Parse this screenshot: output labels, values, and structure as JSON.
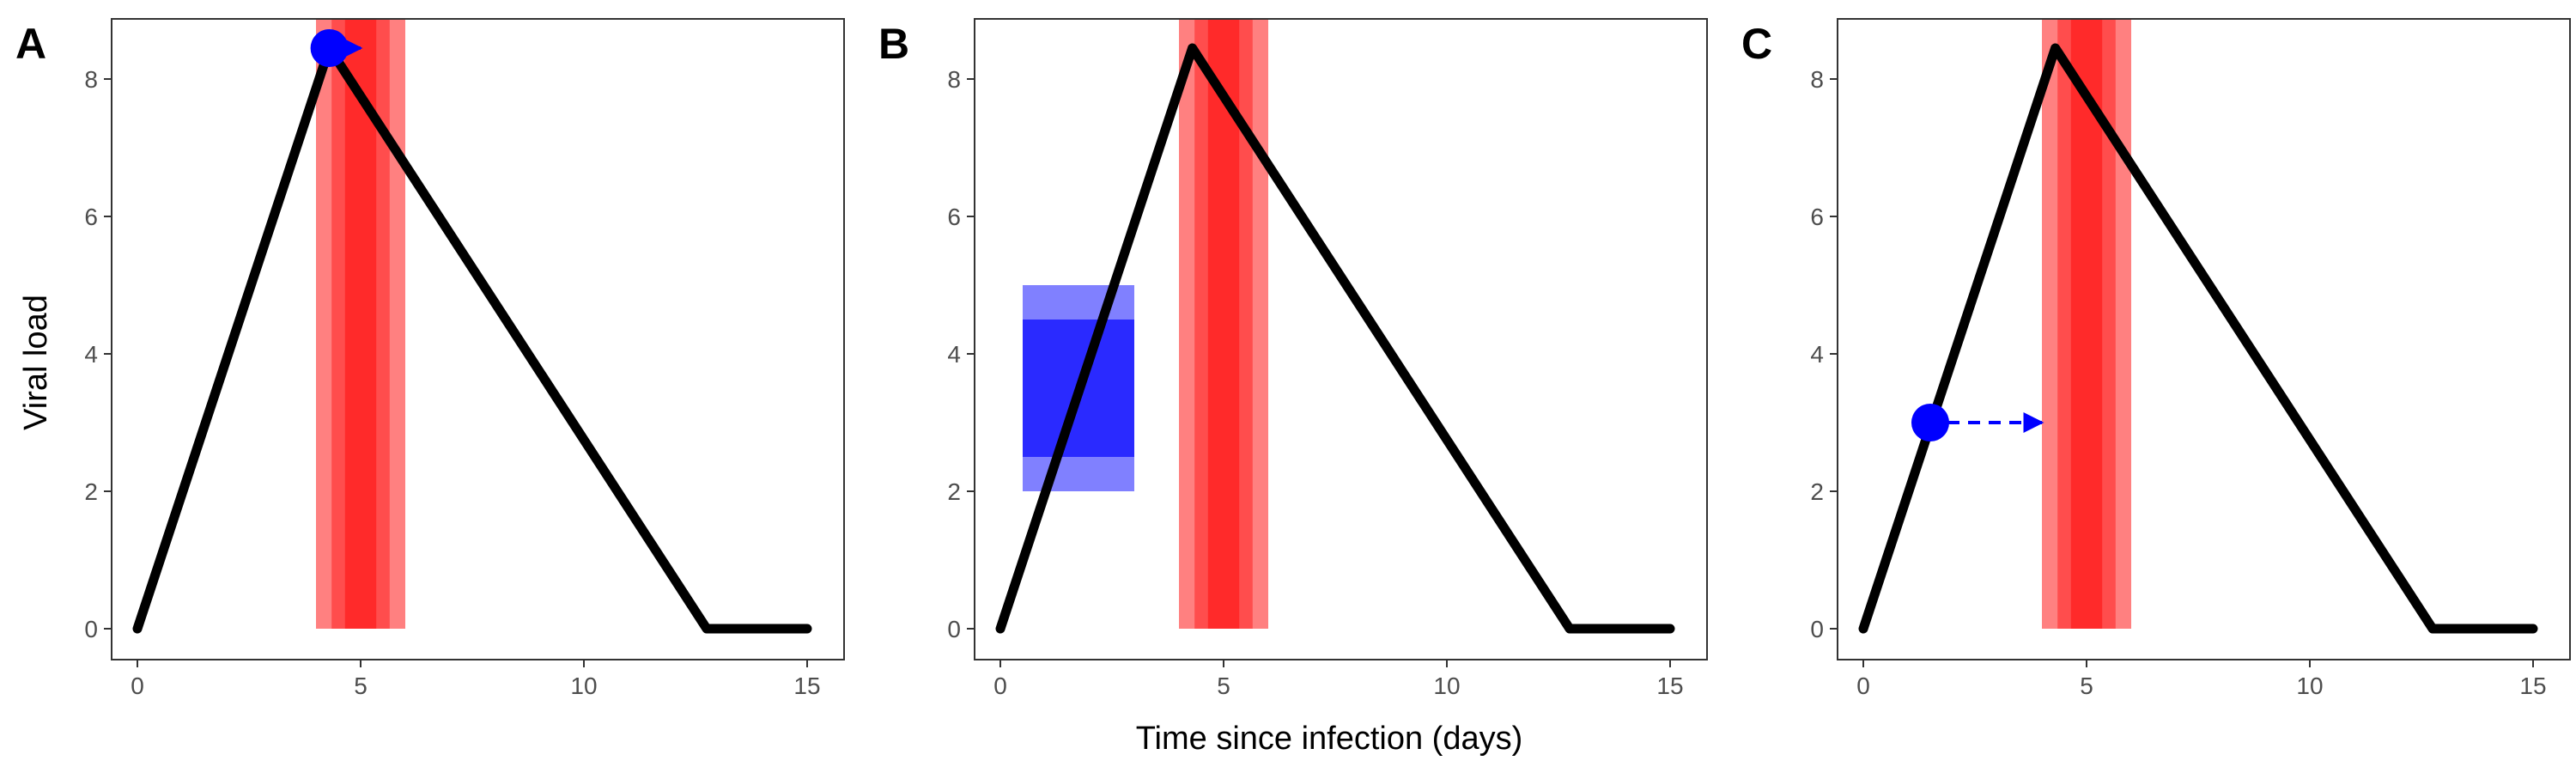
{
  "figure": {
    "xlabel": "Time since infection (days)",
    "ylabel": "Viral load"
  },
  "colors": {
    "trajectory": "#000000",
    "infectious_outer": "#ff8080",
    "infectious_mid": "#ff4d4d",
    "infectious_inner": "#ff2a2a",
    "marker": "#0000ff",
    "test_window_outer": "#8080ff",
    "test_window_inner": "#2a2aff"
  },
  "chart_data": [
    {
      "panel": "A",
      "type": "line",
      "xlim": [
        0,
        15
      ],
      "ylim": [
        0,
        8.5
      ],
      "x_ticks": [
        "0",
        "5",
        "10",
        "15"
      ],
      "y_ticks": [
        "0",
        "2",
        "4",
        "6",
        "8"
      ],
      "trajectory": {
        "x": [
          0,
          4.3,
          12.75,
          15
        ],
        "y": [
          0,
          8.45,
          0,
          0
        ]
      },
      "infectious_period": [
        {
          "x_start": 4.0,
          "x_end": 6.0,
          "level": "outer"
        },
        {
          "x_start": 4.35,
          "x_end": 5.65,
          "level": "mid"
        },
        {
          "x_start": 4.65,
          "x_end": 5.35,
          "level": "inner"
        }
      ],
      "marker": {
        "x": 4.3,
        "y": 8.45
      },
      "arrow": {
        "x_from": 4.3,
        "x_to": 5.0,
        "y": 8.45
      },
      "grid": false
    },
    {
      "panel": "B",
      "type": "line",
      "xlim": [
        0,
        15
      ],
      "ylim": [
        0,
        8.5
      ],
      "x_ticks": [
        "0",
        "5",
        "10",
        "15"
      ],
      "y_ticks": [
        "0",
        "2",
        "4",
        "6",
        "8"
      ],
      "trajectory": {
        "x": [
          0,
          4.3,
          12.75,
          15
        ],
        "y": [
          0,
          8.45,
          0,
          0
        ]
      },
      "infectious_period": [
        {
          "x_start": 4.0,
          "x_end": 6.0,
          "level": "outer"
        },
        {
          "x_start": 4.35,
          "x_end": 5.65,
          "level": "mid"
        },
        {
          "x_start": 4.65,
          "x_end": 5.35,
          "level": "inner"
        }
      ],
      "test_window": [
        {
          "x_start": 0.5,
          "x_end": 3.0,
          "y_start": 2.0,
          "y_end": 5.0,
          "level": "outer"
        },
        {
          "x_start": 0.5,
          "x_end": 3.0,
          "y_start": 2.5,
          "y_end": 4.5,
          "level": "inner"
        }
      ],
      "grid": false
    },
    {
      "panel": "C",
      "type": "line",
      "xlim": [
        0,
        15
      ],
      "ylim": [
        0,
        8.5
      ],
      "x_ticks": [
        "0",
        "5",
        "10",
        "15"
      ],
      "y_ticks": [
        "0",
        "2",
        "4",
        "6",
        "8"
      ],
      "trajectory": {
        "x": [
          0,
          4.3,
          12.75,
          15
        ],
        "y": [
          0,
          8.45,
          0,
          0
        ]
      },
      "infectious_period": [
        {
          "x_start": 4.0,
          "x_end": 6.0,
          "level": "outer"
        },
        {
          "x_start": 4.35,
          "x_end": 5.65,
          "level": "mid"
        },
        {
          "x_start": 4.65,
          "x_end": 5.35,
          "level": "inner"
        }
      ],
      "marker": {
        "x": 1.5,
        "y": 3.0
      },
      "arrow": {
        "x_from": 1.5,
        "x_to": 4.0,
        "y": 3.0,
        "style": "dashed"
      },
      "grid": false
    }
  ]
}
